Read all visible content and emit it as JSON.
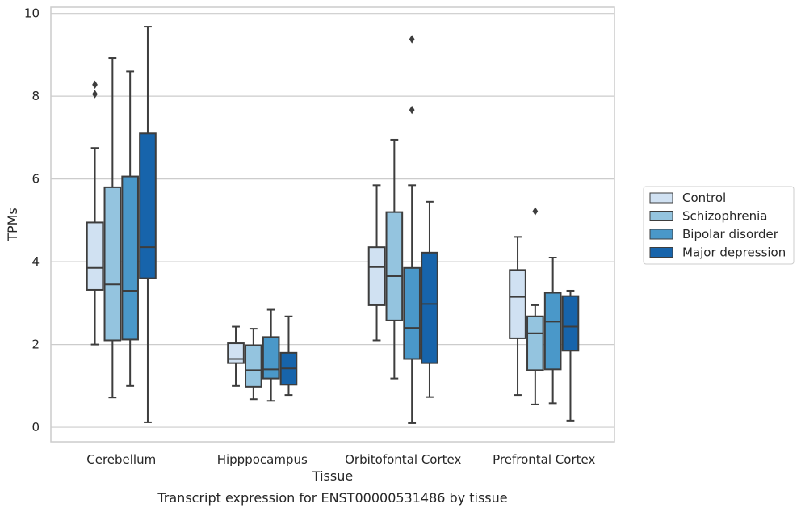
{
  "chart_data": {
    "type": "box",
    "xlabel": "Tissue",
    "ylabel": "TPMs",
    "caption": "Transcript expression for ENST00000531486 by tissue",
    "ylim": [
      -0.35,
      10.15
    ],
    "yticks": [
      0,
      2,
      4,
      6,
      8,
      10
    ],
    "grid": "horizontal",
    "legend_placement": "right",
    "categories": [
      "Cerebellum",
      "Hipppocampus",
      "Orbitofontal Cortex",
      "Prefrontal Cortex"
    ],
    "series": [
      {
        "name": "Control",
        "color": "#d0e1f2",
        "boxes": [
          {
            "whislo": 2.0,
            "q1": 3.32,
            "median": 3.85,
            "q3": 4.95,
            "whishi": 6.75,
            "fliers": [
              8.05,
              8.28
            ]
          },
          {
            "whislo": 1.0,
            "q1": 1.55,
            "median": 1.65,
            "q3": 2.03,
            "whishi": 2.43,
            "fliers": []
          },
          {
            "whislo": 2.1,
            "q1": 2.95,
            "median": 3.87,
            "q3": 4.35,
            "whishi": 5.85,
            "fliers": []
          },
          {
            "whislo": 0.78,
            "q1": 2.15,
            "median": 3.15,
            "q3": 3.8,
            "whishi": 4.6,
            "fliers": []
          }
        ]
      },
      {
        "name": "Schizophrenia",
        "color": "#94c4df",
        "boxes": [
          {
            "whislo": 0.72,
            "q1": 2.1,
            "median": 3.45,
            "q3": 5.8,
            "whishi": 8.92,
            "fliers": []
          },
          {
            "whislo": 0.68,
            "q1": 0.98,
            "median": 1.38,
            "q3": 1.98,
            "whishi": 2.38,
            "fliers": []
          },
          {
            "whislo": 1.18,
            "q1": 2.58,
            "median": 3.65,
            "q3": 5.2,
            "whishi": 6.95,
            "fliers": []
          },
          {
            "whislo": 0.55,
            "q1": 1.38,
            "median": 2.27,
            "q3": 2.68,
            "whishi": 2.95,
            "fliers": [
              5.22
            ]
          }
        ]
      },
      {
        "name": "Bipolar disorder",
        "color": "#4a98c9",
        "boxes": [
          {
            "whislo": 1.0,
            "q1": 2.12,
            "median": 3.3,
            "q3": 6.06,
            "whishi": 8.6,
            "fliers": []
          },
          {
            "whislo": 0.64,
            "q1": 1.18,
            "median": 1.4,
            "q3": 2.18,
            "whishi": 2.84,
            "fliers": []
          },
          {
            "whislo": 0.1,
            "q1": 1.65,
            "median": 2.4,
            "q3": 3.85,
            "whishi": 5.85,
            "fliers": [
              7.67,
              9.38
            ]
          },
          {
            "whislo": 0.58,
            "q1": 1.4,
            "median": 2.55,
            "q3": 3.25,
            "whishi": 4.1,
            "fliers": []
          }
        ]
      },
      {
        "name": "Major depression",
        "color": "#1764ab",
        "boxes": [
          {
            "whislo": 0.12,
            "q1": 3.6,
            "median": 4.35,
            "q3": 7.1,
            "whishi": 9.68,
            "fliers": []
          },
          {
            "whislo": 0.78,
            "q1": 1.03,
            "median": 1.42,
            "q3": 1.8,
            "whishi": 2.68,
            "fliers": []
          },
          {
            "whislo": 0.73,
            "q1": 1.55,
            "median": 2.98,
            "q3": 4.22,
            "whishi": 5.45,
            "fliers": []
          },
          {
            "whislo": 0.16,
            "q1": 1.85,
            "median": 2.43,
            "q3": 3.17,
            "whishi": 3.3,
            "fliers": []
          }
        ]
      }
    ]
  }
}
